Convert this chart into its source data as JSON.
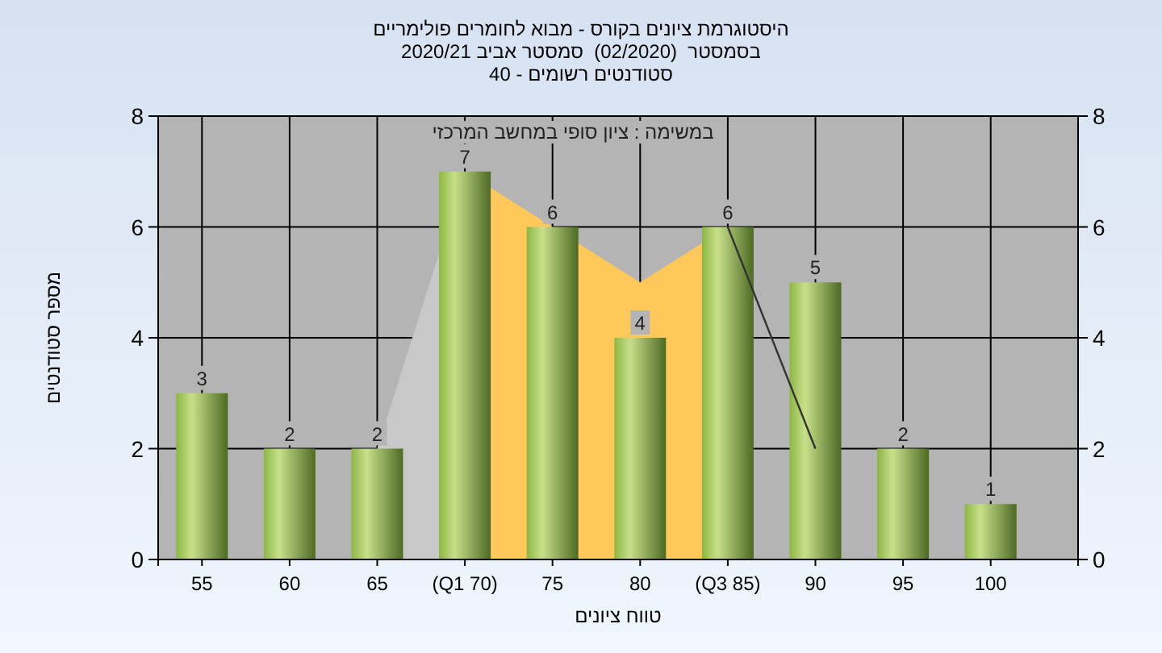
{
  "chart_data": {
    "type": "bar",
    "title": "היסטוגרמת ציונים בקורס - מבוא לחומרים פולימריים",
    "subtitle": "בסמסטר  (02/2020)  סמסטר אביב 2020/21\nסטודנטים רשומים - 40",
    "xlabel": "טווח ציונים",
    "ylabel": "מספר סטודנטים",
    "annotations": [
      "במשימה : ציון סופי במחשב המרכזי"
    ],
    "categories": [
      "55",
      "60",
      "65",
      "(Q1 70)",
      "75",
      "80",
      "(Q3 85)",
      "90",
      "95",
      "100"
    ],
    "series": [
      {
        "type": "area",
        "color": "#c8c8c8",
        "values": [
          null,
          null,
          2,
          7,
          null,
          null,
          null,
          null,
          null,
          null
        ]
      },
      {
        "type": "area",
        "color": "#ffc85a",
        "values": [
          null,
          null,
          null,
          7,
          6,
          5,
          6,
          null,
          null,
          null
        ]
      },
      {
        "color": "#8db645",
        "values": [
          3,
          2,
          2,
          7,
          6,
          4,
          6,
          5,
          2,
          1
        ],
        "value_labels": [
          "3",
          "2",
          "2",
          "7",
          "6",
          "4",
          "6",
          "5",
          "2",
          "1"
        ]
      },
      {
        "type": "line",
        "color": "#333333",
        "values": [
          null,
          null,
          null,
          null,
          null,
          null,
          6,
          2,
          null,
          null
        ]
      }
    ],
    "ylim": [
      0,
      8
    ],
    "yticks": [
      0,
      2,
      4,
      6,
      8
    ],
    "y2lim": [
      0,
      8
    ],
    "y2ticks": [
      0,
      2,
      4,
      6,
      8
    ],
    "grid": true
  }
}
